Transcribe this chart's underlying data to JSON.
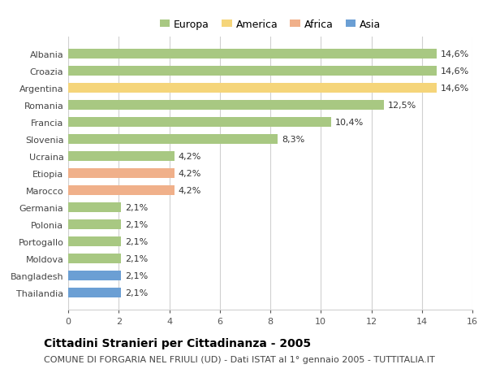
{
  "categories": [
    "Albania",
    "Croazia",
    "Argentina",
    "Romania",
    "Francia",
    "Slovenia",
    "Ucraina",
    "Etiopia",
    "Marocco",
    "Germania",
    "Polonia",
    "Portogallo",
    "Moldova",
    "Bangladesh",
    "Thailandia"
  ],
  "values": [
    14.6,
    14.6,
    14.6,
    12.5,
    10.4,
    8.3,
    4.2,
    4.2,
    4.2,
    2.1,
    2.1,
    2.1,
    2.1,
    2.1,
    2.1
  ],
  "labels": [
    "14,6%",
    "14,6%",
    "14,6%",
    "12,5%",
    "10,4%",
    "8,3%",
    "4,2%",
    "4,2%",
    "4,2%",
    "2,1%",
    "2,1%",
    "2,1%",
    "2,1%",
    "2,1%",
    "2,1%"
  ],
  "continent": [
    "Europa",
    "Europa",
    "America",
    "Europa",
    "Europa",
    "Europa",
    "Europa",
    "Africa",
    "Africa",
    "Europa",
    "Europa",
    "Europa",
    "Europa",
    "Asia",
    "Asia"
  ],
  "colors": {
    "Europa": "#a8c882",
    "America": "#f5d57a",
    "Africa": "#f0b08a",
    "Asia": "#6b9fd4"
  },
  "xlim": [
    0,
    16
  ],
  "xticks": [
    0,
    2,
    4,
    6,
    8,
    10,
    12,
    14,
    16
  ],
  "title": "Cittadini Stranieri per Cittadinanza - 2005",
  "subtitle": "COMUNE DI FORGARIA NEL FRIULI (UD) - Dati ISTAT al 1° gennaio 2005 - TUTTITALIA.IT",
  "background_color": "#ffffff",
  "grid_color": "#d0d0d0",
  "bar_height": 0.55,
  "label_fontsize": 8,
  "tick_fontsize": 8,
  "title_fontsize": 10,
  "subtitle_fontsize": 8,
  "legend_order": [
    "Europa",
    "America",
    "Africa",
    "Asia"
  ]
}
